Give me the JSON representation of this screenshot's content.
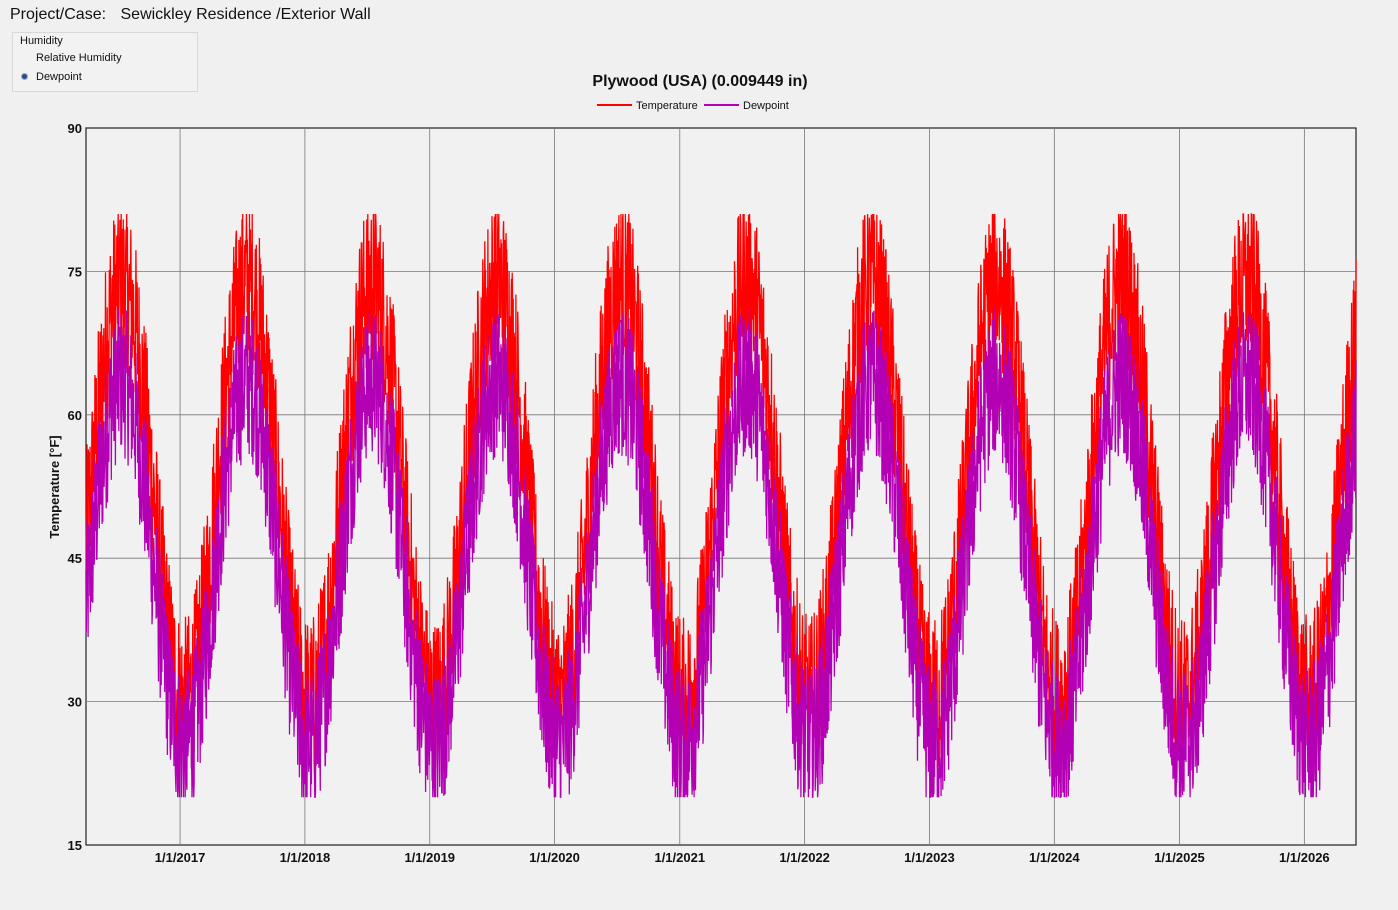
{
  "header": {
    "label": "Project/Case:",
    "value": "Sewickley Residence /Exterior Wall"
  },
  "humidity_panel": {
    "group_label": "Humidity",
    "options": [
      {
        "label": "Relative Humidity",
        "selected": false
      },
      {
        "label": "Dewpoint",
        "selected": true
      }
    ]
  },
  "chart_data": {
    "type": "line",
    "title": "Plywood (USA) (0.009449 in)",
    "ylabel": "Temperature [°F]",
    "xlabel": "",
    "ylim": [
      15,
      90
    ],
    "yticks": [
      "90",
      "75",
      "60",
      "45",
      "30",
      "15"
    ],
    "xlim": [
      "2016-04-01",
      "2026-06-01"
    ],
    "xticks": [
      "1/1/2017",
      "1/1/2018",
      "1/1/2019",
      "1/1/2020",
      "1/1/2021",
      "1/1/2022",
      "1/1/2023",
      "1/1/2024",
      "1/1/2025",
      "1/1/2026"
    ],
    "grid": true,
    "legend_position": "top-center",
    "series": [
      {
        "name": "Temperature",
        "color": "#ff0000",
        "annual_mean": 52,
        "annual_amplitude": 22,
        "max": 81,
        "min": 23,
        "peak_month": "July"
      },
      {
        "name": "Dewpoint",
        "color": "#b400b4",
        "annual_mean": 46,
        "annual_amplitude": 19,
        "max": 72,
        "min": 20,
        "peak_month": "July"
      }
    ]
  }
}
